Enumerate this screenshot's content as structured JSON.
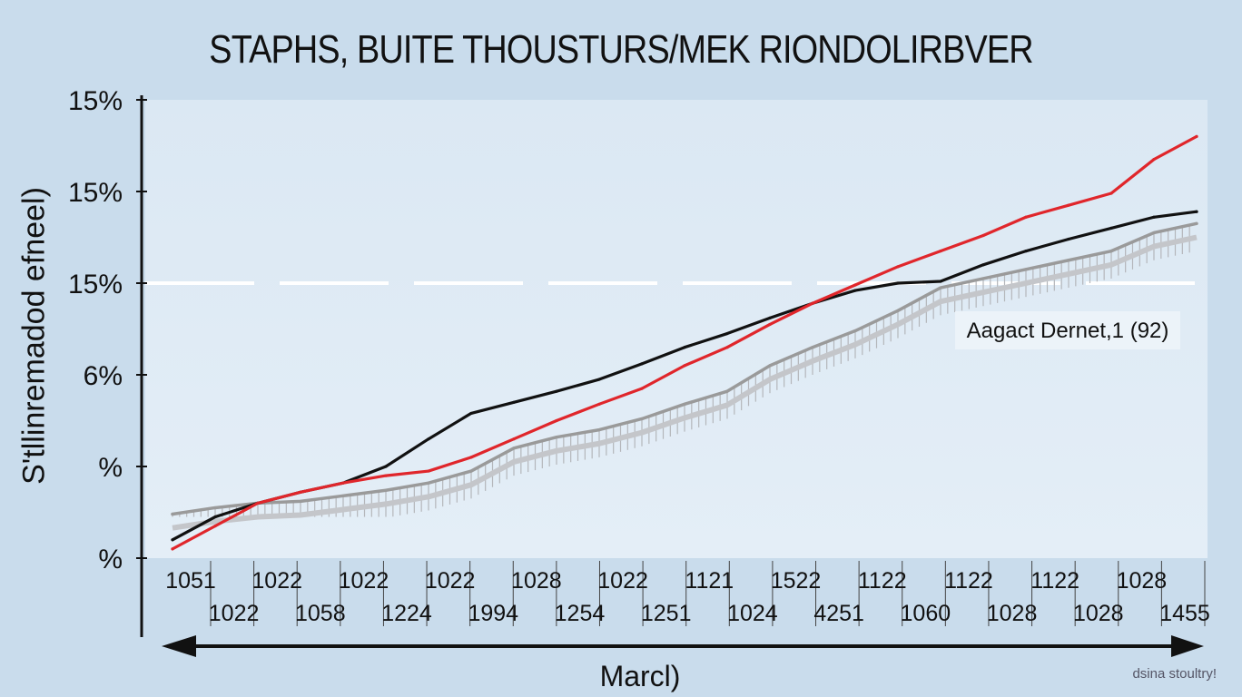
{
  "chart_data": {
    "type": "line",
    "title": "STAPHS, BUITE THOUSTURS/MEK RIONDOLIRBVER",
    "ylabel": "S'tllinremadod efneel)",
    "xlabel": "Marcl)",
    "source": "dsina stoultry!",
    "y_tick_labels": [
      "%",
      "%",
      "6%",
      "15%",
      "15%",
      "15%"
    ],
    "x_tick_labels": [
      "1051",
      "1022",
      "1022",
      "1058",
      "1022",
      "1224",
      "1022",
      "1994",
      "1028",
      "1254",
      "1022",
      "1251",
      "1121",
      "1024",
      "1522",
      "4251",
      "1122",
      "1060",
      "1122",
      "1028",
      "1122",
      "1028",
      "1028",
      "1455"
    ],
    "ylim": [
      0,
      5
    ],
    "reference_line": {
      "y": 3,
      "style": "dashed",
      "color": "#ffffff"
    },
    "annotation": "Aagact Dernet,1 (92)",
    "grid": false,
    "x": [
      0,
      1,
      2,
      3,
      4,
      5,
      6,
      7,
      8,
      9,
      10,
      11,
      12,
      13,
      14,
      15,
      16,
      17,
      18,
      19,
      20,
      21,
      22,
      23,
      24
    ],
    "series": [
      {
        "color": "#e0262b",
        "values": [
          0.1,
          0.35,
          0.6,
          0.72,
          0.82,
          0.9,
          0.95,
          1.1,
          1.3,
          1.5,
          1.68,
          1.85,
          2.1,
          2.3,
          2.55,
          2.78,
          2.98,
          3.18,
          3.35,
          3.52,
          3.72,
          3.85,
          3.98,
          4.35,
          4.6
        ]
      },
      {
        "color": "#111111",
        "values": [
          0.2,
          0.45,
          0.6,
          0.72,
          0.82,
          1.0,
          1.3,
          1.58,
          1.7,
          1.82,
          1.95,
          2.12,
          2.3,
          2.45,
          2.62,
          2.78,
          2.92,
          3.0,
          3.02,
          3.2,
          3.35,
          3.48,
          3.6,
          3.72,
          3.78
        ]
      },
      {
        "color": "#9a9a9a",
        "values": [
          0.48,
          0.55,
          0.6,
          0.62,
          0.68,
          0.74,
          0.82,
          0.95,
          1.2,
          1.32,
          1.4,
          1.52,
          1.68,
          1.82,
          2.1,
          2.3,
          2.48,
          2.7,
          2.95,
          3.05,
          3.15,
          3.25,
          3.35,
          3.55,
          3.65
        ]
      }
    ]
  }
}
